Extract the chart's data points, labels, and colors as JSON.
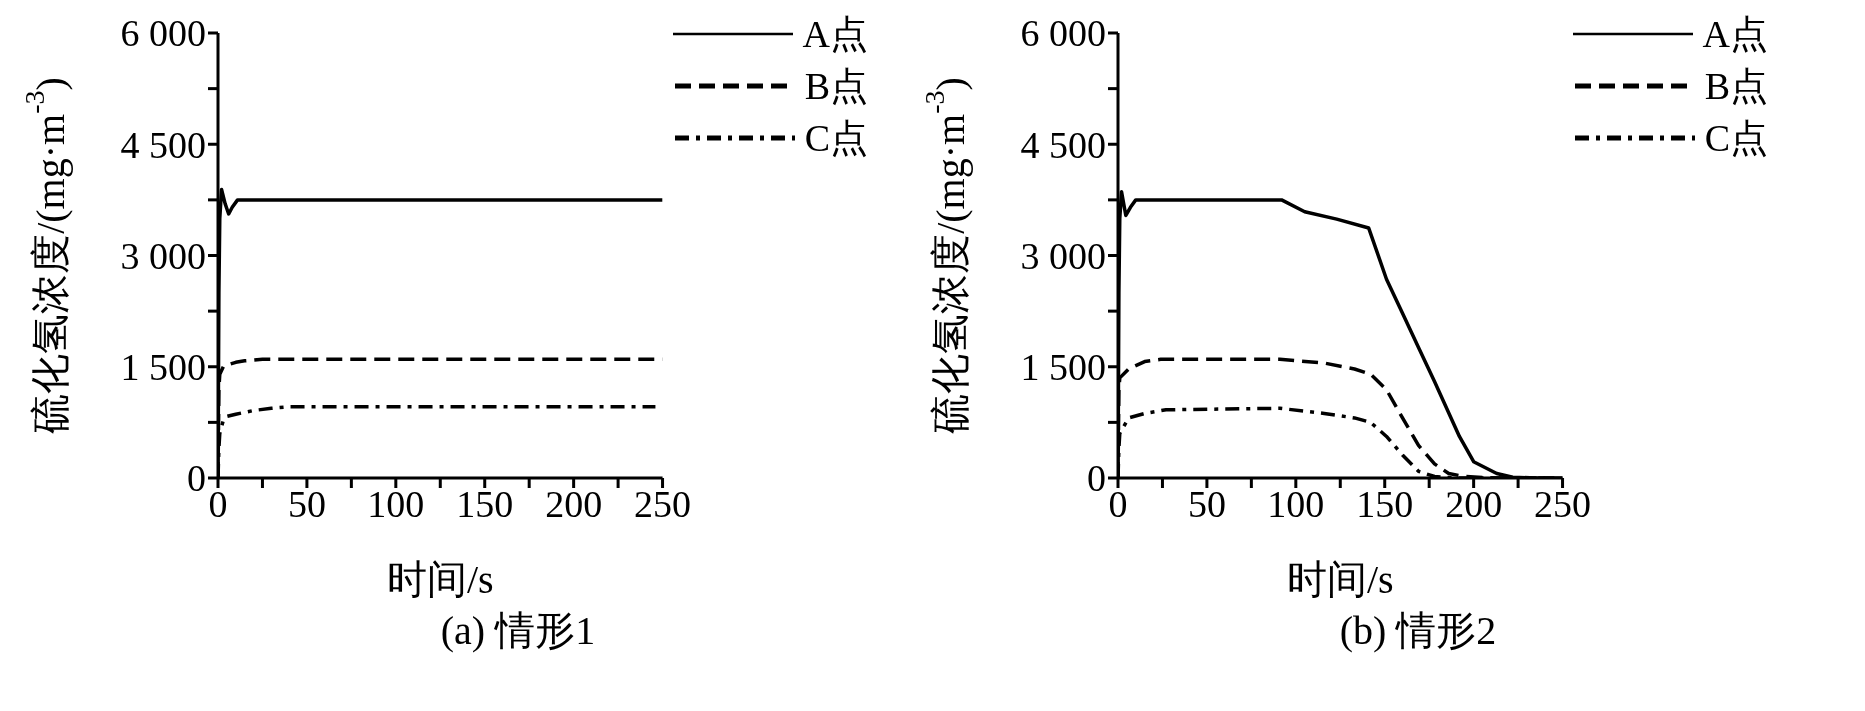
{
  "chart_data": [
    {
      "type": "line",
      "title": "(a) 情形1",
      "xlabel": "时间/s",
      "ylabel": "硫化氢浓度/(mg·m$^{-3}$)",
      "xlim": [
        0,
        250
      ],
      "ylim": [
        0,
        6000
      ],
      "xticks": [
        0,
        {
          "value": 25,
          "label": null
        },
        50,
        {
          "value": 75,
          "label": null
        },
        100,
        {
          "value": 125,
          "label": null
        },
        150,
        {
          "value": 175,
          "label": null
        },
        200,
        {
          "value": 225,
          "label": null
        },
        250
      ],
      "yticks": [
        0,
        {
          "value": 750,
          "label": null
        },
        {
          "value": 1500,
          "label": "1 500"
        },
        {
          "value": 2250,
          "label": null
        },
        {
          "value": 3000,
          "label": "3 000"
        },
        {
          "value": 3750,
          "label": null
        },
        {
          "value": 4500,
          "label": "4 500"
        },
        {
          "value": 5250,
          "label": null
        },
        {
          "value": 6000,
          "label": "6 000"
        }
      ],
      "legend": "top right",
      "marker": "none",
      "series": [
        {
          "name": "A点",
          "color": "#000000",
          "line_style": "solid",
          "x": [
            0,
            0.5,
            1,
            2,
            4,
            6,
            8,
            11,
            20,
            50,
            100,
            150,
            200,
            250
          ],
          "values": [
            0,
            2500,
            3500,
            3890,
            3700,
            3560,
            3650,
            3750,
            3750,
            3750,
            3750,
            3750,
            3750,
            3750
          ]
        },
        {
          "name": "B点",
          "color": "#000000",
          "line_style": "dashed",
          "x": [
            0,
            0.5,
            1,
            3,
            6,
            10,
            15,
            25,
            50,
            100,
            150,
            200,
            250
          ],
          "values": [
            0,
            1200,
            1400,
            1500,
            1530,
            1560,
            1580,
            1600,
            1600,
            1600,
            1600,
            1600,
            1600
          ]
        },
        {
          "name": "C点",
          "color": "#000000",
          "line_style": "dashdot",
          "x": [
            0,
            0.5,
            1,
            3,
            5,
            10,
            20,
            30,
            40,
            100,
            150,
            200,
            246
          ],
          "values": [
            0,
            400,
            600,
            780,
            830,
            860,
            910,
            940,
            960,
            960,
            960,
            960,
            960
          ]
        }
      ]
    },
    {
      "type": "line",
      "title": "(b) 情形2",
      "xlabel": "时间/s",
      "ylabel": "硫化氢浓度/(mg·m$^{-3}$)",
      "xlim": [
        0,
        250
      ],
      "ylim": [
        0,
        6000
      ],
      "xticks": [
        0,
        {
          "value": 25,
          "label": null
        },
        50,
        {
          "value": 75,
          "label": null
        },
        100,
        {
          "value": 125,
          "label": null
        },
        150,
        {
          "value": 175,
          "label": null
        },
        200,
        {
          "value": 225,
          "label": null
        },
        250
      ],
      "yticks": [
        0,
        {
          "value": 750,
          "label": null
        },
        {
          "value": 1500,
          "label": "1 500"
        },
        {
          "value": 2250,
          "label": null
        },
        {
          "value": 3000,
          "label": "3 000"
        },
        {
          "value": 3750,
          "label": null
        },
        {
          "value": 4500,
          "label": "4 500"
        },
        {
          "value": 5250,
          "label": null
        },
        {
          "value": 6000,
          "label": "6 000"
        }
      ],
      "legend": "top right",
      "marker": "none",
      "series": [
        {
          "name": "A点",
          "color": "#000000",
          "line_style": "solid",
          "x": [
            0,
            0.5,
            1,
            2,
            4.4,
            7,
            10,
            20,
            50,
            92,
            105,
            123,
            141,
            151,
            160,
            169,
            178,
            192,
            200,
            213,
            222,
            235,
            250
          ],
          "values": [
            0,
            2500,
            3500,
            3860,
            3540,
            3650,
            3750,
            3750,
            3750,
            3750,
            3590,
            3490,
            3370,
            2680,
            2220,
            1760,
            1300,
            560,
            220,
            60,
            10,
            0,
            0
          ]
        },
        {
          "name": "B点",
          "color": "#000000",
          "line_style": "dashed",
          "x": [
            0,
            0.5,
            1,
            6,
            15,
            24,
            91,
            116,
            133,
            142,
            151,
            160,
            169,
            178,
            186,
            195,
            210,
            250
          ],
          "values": [
            0,
            1200,
            1350,
            1470,
            1570,
            1600,
            1600,
            1550,
            1470,
            1400,
            1190,
            810,
            440,
            190,
            60,
            20,
            0,
            0
          ]
        },
        {
          "name": "C点",
          "color": "#000000",
          "line_style": "dashdot",
          "x": [
            0,
            0.5,
            1,
            6,
            15,
            27,
            91,
            116,
            133,
            142,
            151,
            160,
            169,
            178,
            190,
            240
          ],
          "values": [
            0,
            400,
            600,
            810,
            870,
            920,
            940,
            870,
            810,
            750,
            560,
            310,
            90,
            20,
            0,
            0
          ]
        }
      ]
    }
  ]
}
